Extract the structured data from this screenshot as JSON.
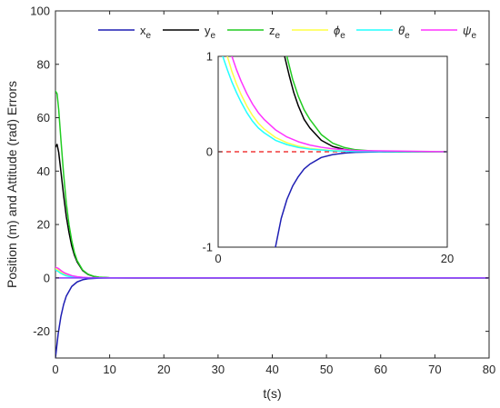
{
  "chart_data": [
    {
      "type": "line",
      "title": "",
      "xlabel": "t(s)",
      "ylabel": "Position (m) and Attitude (rad) Errors",
      "xlim": [
        0,
        80
      ],
      "ylim": [
        -30,
        100
      ],
      "xticks": [
        "0",
        "10",
        "20",
        "30",
        "40",
        "50",
        "60",
        "70",
        "80"
      ],
      "yticks": [
        "-20",
        "0",
        "20",
        "40",
        "60",
        "80",
        "100"
      ],
      "grid": false,
      "legend": {
        "placement": "top, horizontal",
        "entries": [
          {
            "base": "x",
            "sub": "e",
            "greek": false,
            "color": "#1f1fb4"
          },
          {
            "base": "y",
            "sub": "e",
            "greek": false,
            "color": "#000000"
          },
          {
            "base": "z",
            "sub": "e",
            "greek": false,
            "color": "#22cc22"
          },
          {
            "base": "ϕ",
            "sub": "e",
            "greek": true,
            "color": "#ffff44"
          },
          {
            "base": "θ",
            "sub": "e",
            "greek": true,
            "color": "#22ffff"
          },
          {
            "base": "ψ",
            "sub": "e",
            "greek": true,
            "color": "#ff33ff"
          }
        ]
      },
      "series": [
        {
          "key": "x_e",
          "color": "#1f1fb4",
          "x": [
            0,
            0.5,
            1,
            1.5,
            2,
            3,
            4,
            5,
            6,
            8,
            10,
            15,
            20,
            80
          ],
          "y": [
            -30,
            -21,
            -14.5,
            -10,
            -6.8,
            -3.2,
            -1.5,
            -0.7,
            -0.3,
            -0.08,
            -0.02,
            0,
            0,
            0
          ]
        },
        {
          "key": "y_e",
          "color": "#000000",
          "x": [
            0,
            0.3,
            0.6,
            1,
            1.5,
            2,
            2.5,
            3,
            3.5,
            4,
            5,
            6,
            7,
            8,
            10,
            15,
            80
          ],
          "y": [
            49,
            50,
            47,
            40,
            31,
            23,
            17,
            12,
            8.5,
            6,
            2.8,
            1.3,
            0.6,
            0.25,
            0.05,
            0,
            0
          ]
        },
        {
          "key": "z_e",
          "color": "#22cc22",
          "x": [
            0,
            0.3,
            0.6,
            1,
            1.5,
            2,
            2.5,
            3,
            3.5,
            4,
            5,
            6,
            7,
            8,
            10,
            15,
            80
          ],
          "y": [
            70,
            69,
            63,
            52,
            39,
            28,
            20,
            14,
            9.5,
            6.5,
            3.0,
            1.4,
            0.65,
            0.3,
            0.06,
            0,
            0
          ]
        },
        {
          "key": "phi_e",
          "color": "#ffff44",
          "x": [
            0,
            0.5,
            1,
            1.5,
            2,
            3,
            4,
            5,
            6,
            8,
            10,
            80
          ],
          "y": [
            3.5,
            3.0,
            2.2,
            1.6,
            1.1,
            0.55,
            0.27,
            0.13,
            0.06,
            0.015,
            0,
            0
          ]
        },
        {
          "key": "theta_e",
          "color": "#22ffff",
          "x": [
            0,
            0.5,
            1,
            1.5,
            2,
            3,
            4,
            5,
            6,
            8,
            10,
            80
          ],
          "y": [
            3.0,
            2.4,
            1.7,
            1.2,
            0.8,
            0.38,
            0.18,
            0.08,
            0.04,
            0.01,
            0,
            0
          ]
        },
        {
          "key": "psi_e",
          "color": "#ff33ff",
          "x": [
            0,
            0.5,
            1,
            1.5,
            2,
            3,
            4,
            5,
            6,
            8,
            10,
            80
          ],
          "y": [
            4.0,
            3.6,
            2.8,
            2.1,
            1.6,
            0.85,
            0.45,
            0.23,
            0.12,
            0.03,
            0,
            0
          ]
        },
        {
          "key": "violet_ref",
          "color": "#8a3fff",
          "x": [
            0,
            80
          ],
          "y": [
            0,
            0
          ]
        }
      ]
    },
    {
      "type": "line",
      "title": "",
      "xlim": [
        0,
        20
      ],
      "ylim": [
        -1,
        1
      ],
      "xticks": [
        "0",
        "20"
      ],
      "yticks": [
        "-1",
        "0",
        "1"
      ],
      "grid": false,
      "reference_line": {
        "y": 0,
        "color": "#ee1111",
        "style": "dashed"
      },
      "series": [
        {
          "key": "x_e",
          "color": "#1f1fb4",
          "x": [
            5.0,
            5.5,
            6,
            6.5,
            7,
            7.5,
            8,
            9,
            10,
            11,
            12,
            14,
            20
          ],
          "y": [
            -1.0,
            -0.7,
            -0.5,
            -0.36,
            -0.26,
            -0.18,
            -0.13,
            -0.06,
            -0.03,
            -0.014,
            -0.006,
            -0.001,
            0
          ]
        },
        {
          "key": "y_e",
          "color": "#000000",
          "x": [
            5.8,
            6.2,
            6.6,
            7,
            7.5,
            8,
            9,
            10,
            11,
            12,
            14,
            16,
            20
          ],
          "y": [
            1.0,
            0.8,
            0.62,
            0.48,
            0.34,
            0.25,
            0.12,
            0.055,
            0.025,
            0.011,
            0.002,
            0,
            0
          ]
        },
        {
          "key": "z_e",
          "color": "#22cc22",
          "x": [
            6.0,
            6.5,
            7,
            7.5,
            8,
            9,
            10,
            11,
            12,
            14,
            16,
            20
          ],
          "y": [
            1.0,
            0.76,
            0.58,
            0.44,
            0.34,
            0.18,
            0.09,
            0.045,
            0.021,
            0.004,
            0.001,
            0
          ]
        },
        {
          "key": "phi_e",
          "color": "#ffff44",
          "x": [
            0.8,
            1.2,
            1.6,
            2,
            2.5,
            3,
            3.5,
            4,
            5,
            6,
            7,
            8,
            10,
            12,
            20
          ],
          "y": [
            1.0,
            0.84,
            0.71,
            0.6,
            0.48,
            0.38,
            0.3,
            0.24,
            0.15,
            0.095,
            0.058,
            0.035,
            0.012,
            0.004,
            0
          ]
        },
        {
          "key": "theta_e",
          "color": "#22ffff",
          "x": [
            0.4,
            0.8,
            1.2,
            1.6,
            2,
            2.5,
            3,
            3.5,
            4,
            5,
            6,
            7,
            8,
            10,
            12,
            20
          ],
          "y": [
            1.0,
            0.86,
            0.73,
            0.62,
            0.52,
            0.41,
            0.32,
            0.25,
            0.2,
            0.12,
            0.075,
            0.045,
            0.027,
            0.009,
            0.003,
            0
          ]
        },
        {
          "key": "psi_e",
          "color": "#ff33ff",
          "x": [
            1.2,
            1.6,
            2,
            2.5,
            3,
            3.5,
            4,
            5,
            6,
            7,
            8,
            9,
            10,
            12,
            20
          ],
          "y": [
            1.0,
            0.86,
            0.74,
            0.61,
            0.5,
            0.41,
            0.34,
            0.23,
            0.155,
            0.105,
            0.07,
            0.047,
            0.031,
            0.013,
            0
          ]
        }
      ]
    }
  ]
}
